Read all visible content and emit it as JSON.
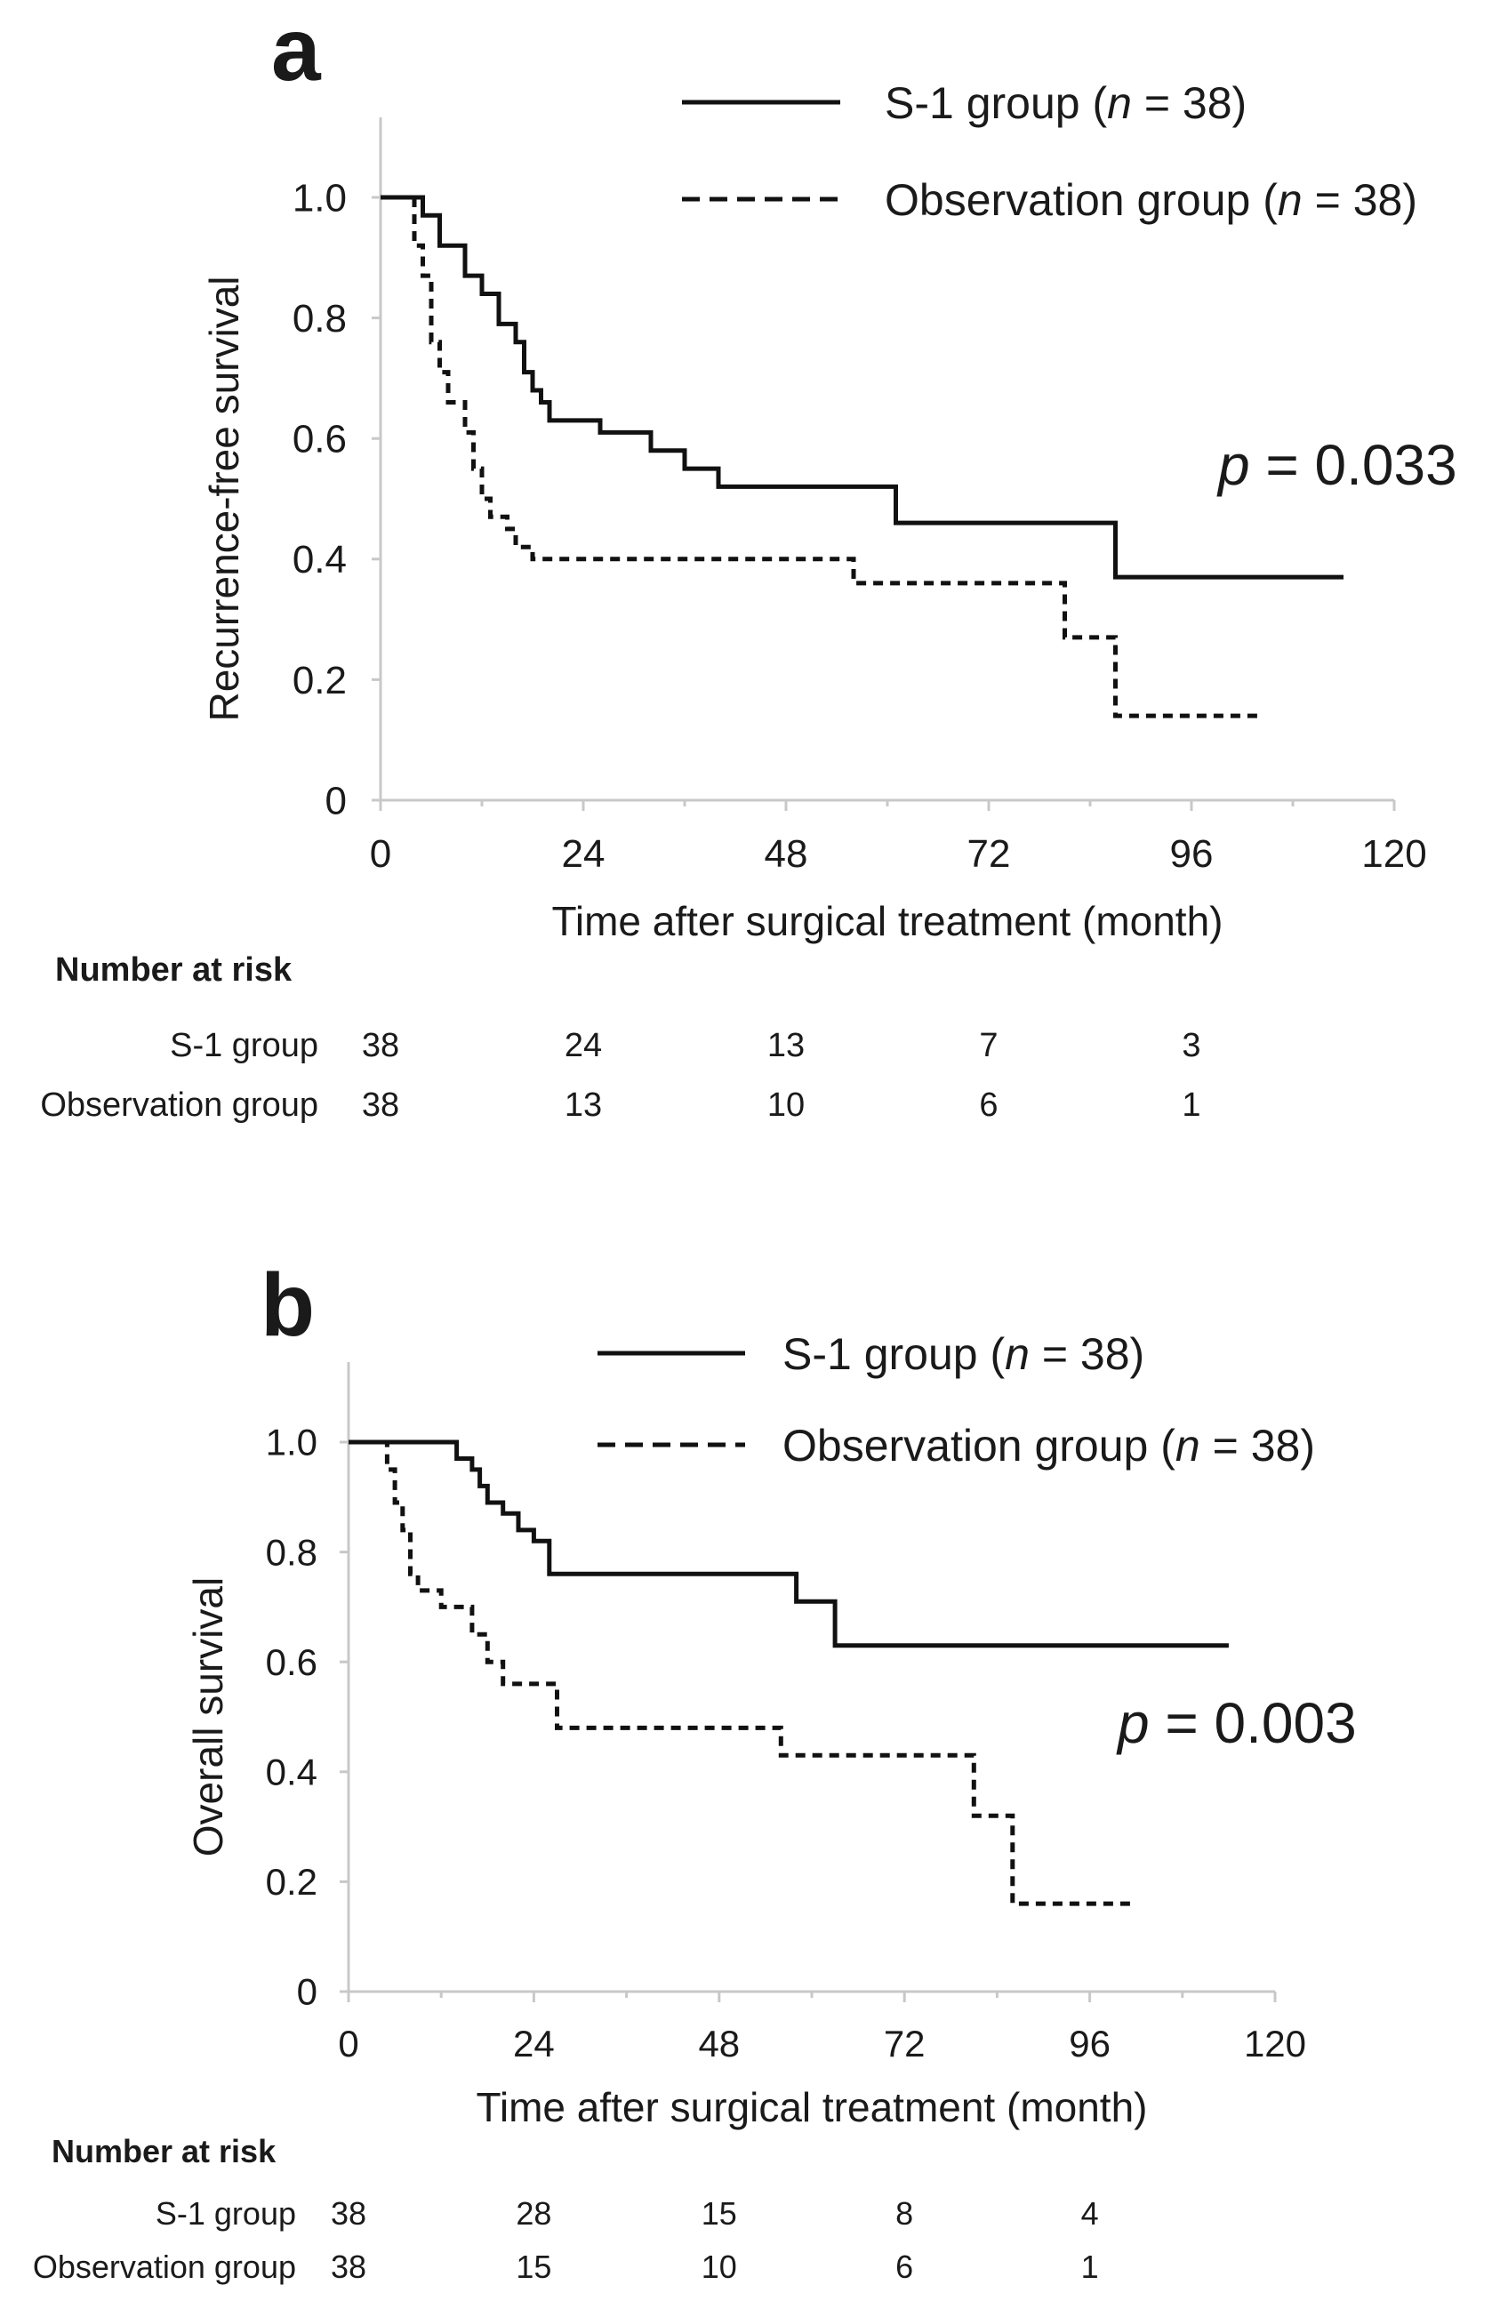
{
  "chart_data": [
    {
      "type": "line",
      "panel_label": "a",
      "ylabel": "Recurrence-free survival",
      "xlabel": "Time after surgical treatment (month)",
      "xlim": [
        0,
        120
      ],
      "ylim": [
        0,
        1.0
      ],
      "xticks": [
        0,
        24,
        48,
        72,
        96,
        120
      ],
      "yticks": [
        0,
        0.2,
        0.4,
        0.6,
        0.8,
        1.0
      ],
      "ytick_labels": [
        "0",
        "0.2",
        "0.4",
        "0.6",
        "0.8",
        "1.0"
      ],
      "legend_placement": "top-right",
      "p_value": "= 0.033",
      "p_symbol": "p",
      "grid": false,
      "series": [
        {
          "label": "S-1 group",
          "n_text": "= 38)",
          "style": "solid",
          "x": [
            0,
            5,
            7,
            10,
            12,
            14,
            16,
            17,
            18,
            19,
            20,
            26,
            32,
            36,
            40,
            61,
            87,
            114
          ],
          "y": [
            1.0,
            0.97,
            0.92,
            0.87,
            0.84,
            0.79,
            0.76,
            0.71,
            0.68,
            0.66,
            0.63,
            0.61,
            0.58,
            0.55,
            0.52,
            0.46,
            0.37,
            0.37
          ]
        },
        {
          "label": "Observation group",
          "n_text": "= 38)",
          "style": "dashed",
          "x": [
            0,
            4,
            5,
            6,
            7,
            8,
            10,
            11,
            12,
            13,
            15,
            16,
            18,
            20,
            56,
            60,
            65,
            70,
            81,
            87,
            104
          ],
          "y": [
            1.0,
            0.92,
            0.87,
            0.76,
            0.71,
            0.66,
            0.61,
            0.55,
            0.5,
            0.47,
            0.45,
            0.42,
            0.4,
            0.4,
            0.36,
            0.36,
            0.36,
            0.36,
            0.27,
            0.14,
            0.14
          ]
        }
      ],
      "risk_table": {
        "title": "Number at risk",
        "times": [
          0,
          24,
          48,
          72,
          96
        ],
        "rows": [
          {
            "label": "S-1 group",
            "values": [
              "38",
              "24",
              "13",
              "7",
              "3"
            ]
          },
          {
            "label": "Observation group",
            "values": [
              "38",
              "13",
              "10",
              "6",
              "1"
            ]
          }
        ]
      }
    },
    {
      "type": "line",
      "panel_label": "b",
      "ylabel": "Overall survival",
      "xlabel": "Time after surgical treatment (month)",
      "xlim": [
        0,
        120
      ],
      "ylim": [
        0,
        1.0
      ],
      "xticks": [
        0,
        24,
        48,
        72,
        96,
        120
      ],
      "yticks": [
        0,
        0.2,
        0.4,
        0.6,
        0.8,
        1.0
      ],
      "ytick_labels": [
        "0",
        "0.2",
        "0.4",
        "0.6",
        "0.8",
        "1.0"
      ],
      "legend_placement": "top-right",
      "p_value": "= 0.003",
      "p_symbol": "p",
      "grid": false,
      "series": [
        {
          "label": "S-1 group",
          "n_text": "= 38)",
          "style": "solid",
          "x": [
            0,
            14,
            16,
            17,
            18,
            20,
            22,
            24,
            26,
            58,
            63,
            114
          ],
          "y": [
            1.0,
            0.97,
            0.95,
            0.92,
            0.89,
            0.87,
            0.84,
            0.82,
            0.76,
            0.71,
            0.63,
            0.63
          ]
        },
        {
          "label": "Observation group",
          "n_text": "= 38)",
          "style": "dashed",
          "x": [
            0,
            5,
            6,
            7,
            8,
            9,
            12,
            16,
            18,
            20,
            27,
            56,
            81,
            86,
            102
          ],
          "y": [
            1.0,
            0.95,
            0.89,
            0.84,
            0.76,
            0.73,
            0.7,
            0.65,
            0.6,
            0.56,
            0.48,
            0.43,
            0.32,
            0.16,
            0.16
          ]
        }
      ],
      "risk_table": {
        "title": "Number at risk",
        "times": [
          0,
          24,
          48,
          72,
          96
        ],
        "rows": [
          {
            "label": "S-1 group",
            "values": [
              "38",
              "28",
              "15",
              "8",
              "4"
            ]
          },
          {
            "label": "Observation group",
            "values": [
              "38",
              "15",
              "10",
              "6",
              "1"
            ]
          }
        ]
      }
    }
  ]
}
